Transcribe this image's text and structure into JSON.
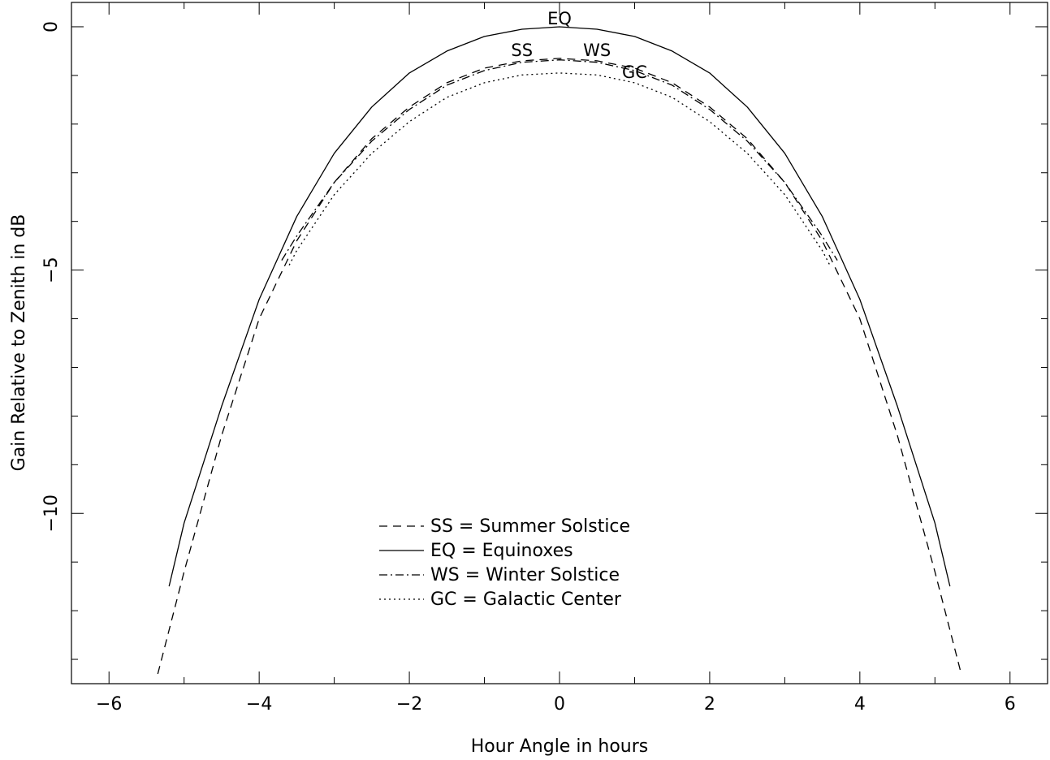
{
  "chart_data": {
    "type": "line",
    "title": "",
    "xlabel": "Hour Angle in hours",
    "ylabel": "Gain Relative to Zenith in dB",
    "xlim": [
      -6.5,
      6.5
    ],
    "ylim": [
      -13.5,
      0.5
    ],
    "xticks": [
      -6,
      -4,
      -2,
      0,
      2,
      4,
      6
    ],
    "xtick_labels": [
      "−6",
      "−4",
      "−2",
      "0",
      "2",
      "4",
      "6"
    ],
    "yticks": [
      0,
      -5,
      -10
    ],
    "ytick_labels": [
      "0",
      "−5",
      "−10"
    ],
    "grid": false,
    "legend_position": "bottom-center",
    "series": [
      {
        "name": "SS = Summer Solstice",
        "label": "SS",
        "style": "dashed",
        "x": [
          -5.35,
          -5.0,
          -4.5,
          -4.0,
          -3.5,
          -3.0,
          -2.5,
          -2.0,
          -1.5,
          -1.0,
          -0.5,
          0.0,
          0.5,
          1.0,
          1.5,
          2.0,
          2.5,
          3.0,
          3.5,
          4.0,
          4.5,
          5.0,
          5.35
        ],
        "y": [
          -13.3,
          -11.2,
          -8.4,
          -6.0,
          -4.4,
          -3.2,
          -2.3,
          -1.65,
          -1.15,
          -0.85,
          -0.7,
          -0.65,
          -0.7,
          -0.85,
          -1.15,
          -1.65,
          -2.3,
          -3.2,
          -4.4,
          -6.0,
          -8.4,
          -11.2,
          -13.3
        ]
      },
      {
        "name": "EQ = Equinoxes",
        "label": "EQ",
        "style": "solid",
        "x": [
          -5.2,
          -5.0,
          -4.5,
          -4.0,
          -3.5,
          -3.0,
          -2.5,
          -2.0,
          -1.5,
          -1.0,
          -0.5,
          0.0,
          0.5,
          1.0,
          1.5,
          2.0,
          2.5,
          3.0,
          3.5,
          4.0,
          4.5,
          5.0,
          5.2
        ],
        "y": [
          -11.5,
          -10.2,
          -7.8,
          -5.6,
          -3.9,
          -2.6,
          -1.65,
          -0.95,
          -0.5,
          -0.2,
          -0.05,
          0.0,
          -0.05,
          -0.2,
          -0.5,
          -0.95,
          -1.65,
          -2.6,
          -3.9,
          -5.6,
          -7.8,
          -10.2,
          -11.5
        ]
      },
      {
        "name": "WS = Winter Solstice",
        "label": "WS",
        "style": "dash-dot",
        "x": [
          -3.7,
          -3.5,
          -3.0,
          -2.5,
          -2.0,
          -1.5,
          -1.0,
          -0.5,
          0.0,
          0.5,
          1.0,
          1.5,
          2.0,
          2.5,
          3.0,
          3.5,
          3.7
        ],
        "y": [
          -4.8,
          -4.3,
          -3.2,
          -2.35,
          -1.7,
          -1.2,
          -0.9,
          -0.73,
          -0.68,
          -0.73,
          -0.9,
          -1.2,
          -1.7,
          -2.35,
          -3.2,
          -4.3,
          -4.8
        ]
      },
      {
        "name": "GC = Galactic Center",
        "label": "GC",
        "style": "dotted",
        "x": [
          -3.6,
          -3.5,
          -3.0,
          -2.5,
          -2.0,
          -1.5,
          -1.0,
          -0.5,
          0.0,
          0.5,
          1.0,
          1.5,
          2.0,
          2.5,
          3.0,
          3.5,
          3.6
        ],
        "y": [
          -4.9,
          -4.6,
          -3.45,
          -2.6,
          -1.95,
          -1.45,
          -1.15,
          -0.99,
          -0.95,
          -0.99,
          -1.15,
          -1.45,
          -1.95,
          -2.6,
          -3.45,
          -4.6,
          -4.9
        ]
      }
    ],
    "annotations": [
      {
        "text": "EQ",
        "x": 0.0,
        "y": 0.05
      },
      {
        "text": "SS",
        "x": -0.5,
        "y": -0.6
      },
      {
        "text": "WS",
        "x": 0.5,
        "y": -0.6
      },
      {
        "text": "GC",
        "x": 1.0,
        "y": -1.05
      }
    ]
  }
}
